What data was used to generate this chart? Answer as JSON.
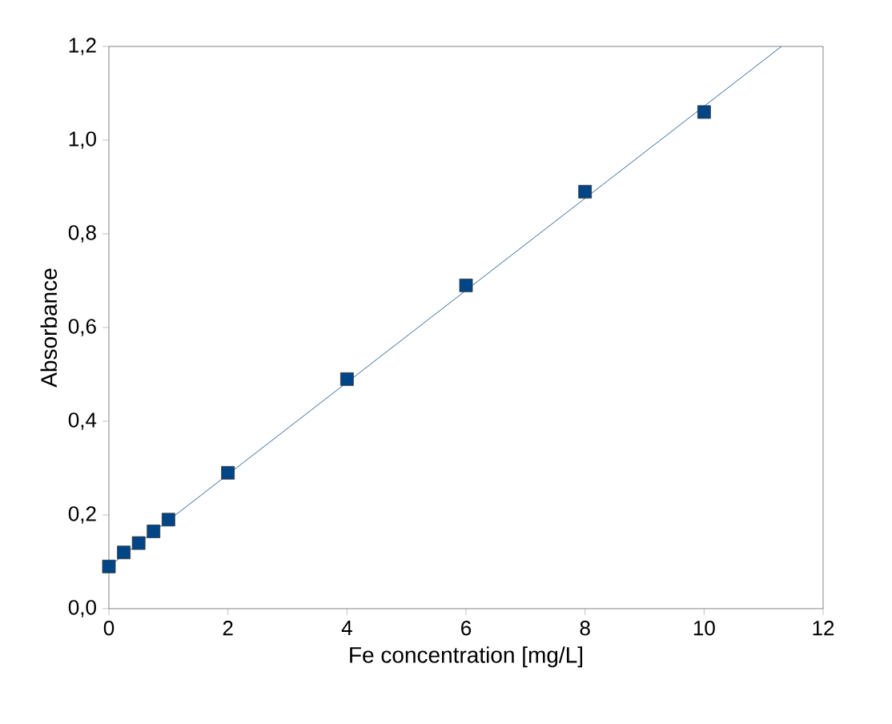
{
  "chart_data": {
    "type": "scatter",
    "xlabel": "Fe concentration [mg/L]",
    "ylabel": "Absorbance",
    "xlim": [
      0,
      12
    ],
    "xticks": [
      0,
      2,
      4,
      6,
      8,
      10,
      12
    ],
    "ylim": [
      0,
      1.2
    ],
    "yticks": [
      {
        "value": 0,
        "label": "0,0"
      },
      {
        "value": 0.2,
        "label": "0,2"
      },
      {
        "value": 0.4,
        "label": "0,4"
      },
      {
        "value": 0.6,
        "label": "0,6"
      },
      {
        "value": 0.8,
        "label": "0,8"
      },
      {
        "value": 1.0,
        "label": "1,0"
      },
      {
        "value": 1.2,
        "label": "1,2"
      }
    ],
    "grid": false,
    "series": [
      {
        "type": "line",
        "color": "#004586",
        "marker": "none",
        "line_style": "solid",
        "x": [
          0,
          11.3
        ],
        "values": [
          0.09,
          1.2
        ]
      },
      {
        "color": "#004586",
        "marker": "square",
        "x": [
          0,
          0.25,
          0.5,
          0.75,
          1,
          2,
          4,
          6,
          8,
          10
        ],
        "values": [
          0.09,
          0.12,
          0.14,
          0.165,
          0.19,
          0.29,
          0.49,
          0.69,
          0.89,
          1.06
        ]
      }
    ]
  }
}
